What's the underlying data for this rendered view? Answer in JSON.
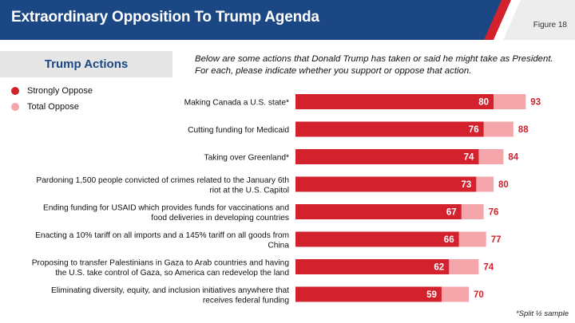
{
  "header": {
    "title": "Extraordinary Opposition To Trump Agenda",
    "figure": "Figure 18"
  },
  "section": {
    "title": "Trump Actions"
  },
  "intro_text": "Below are some actions that Donald Trump has taken or said he might take as President. For each, please indicate whether you support or oppose that action.",
  "footnote": "*Split ½ sample",
  "colors": {
    "brand": "#1b4784",
    "strong": "#d3212d",
    "total": "#f4a6ab"
  },
  "chart_data": {
    "type": "bar",
    "orientation": "horizontal",
    "title": "Trump Actions",
    "categories": [
      [
        "Making Canada a U.S. state*"
      ],
      [
        "Cutting funding for Medicaid"
      ],
      [
        "Taking over Greenland*"
      ],
      [
        "Pardoning 1,500 people convicted of crimes related to the January 6th",
        "riot at the U.S. Capitol"
      ],
      [
        "Ending funding for USAID which provides funds for vaccinations and",
        "food deliveries in developing countries"
      ],
      [
        "Enacting a 10% tariff on all imports and a 145% tariff on all goods from",
        "China"
      ],
      [
        "Proposing to transfer Palestinians in Gaza to Arab countries and having",
        "the U.S. take control of Gaza, so America can redevelop the land"
      ],
      [
        "Eliminating diversity, equity, and inclusion initiatives anywhere that",
        "receives federal funding"
      ]
    ],
    "series": [
      {
        "name": "Strongly Oppose",
        "color": "#d3212d",
        "values": [
          80,
          76,
          74,
          73,
          67,
          66,
          62,
          59
        ]
      },
      {
        "name": "Total Oppose",
        "color": "#f4a6ab",
        "values": [
          93,
          88,
          84,
          80,
          76,
          77,
          74,
          70
        ]
      }
    ],
    "xlim": [
      0,
      100
    ],
    "legend": "top-left"
  }
}
